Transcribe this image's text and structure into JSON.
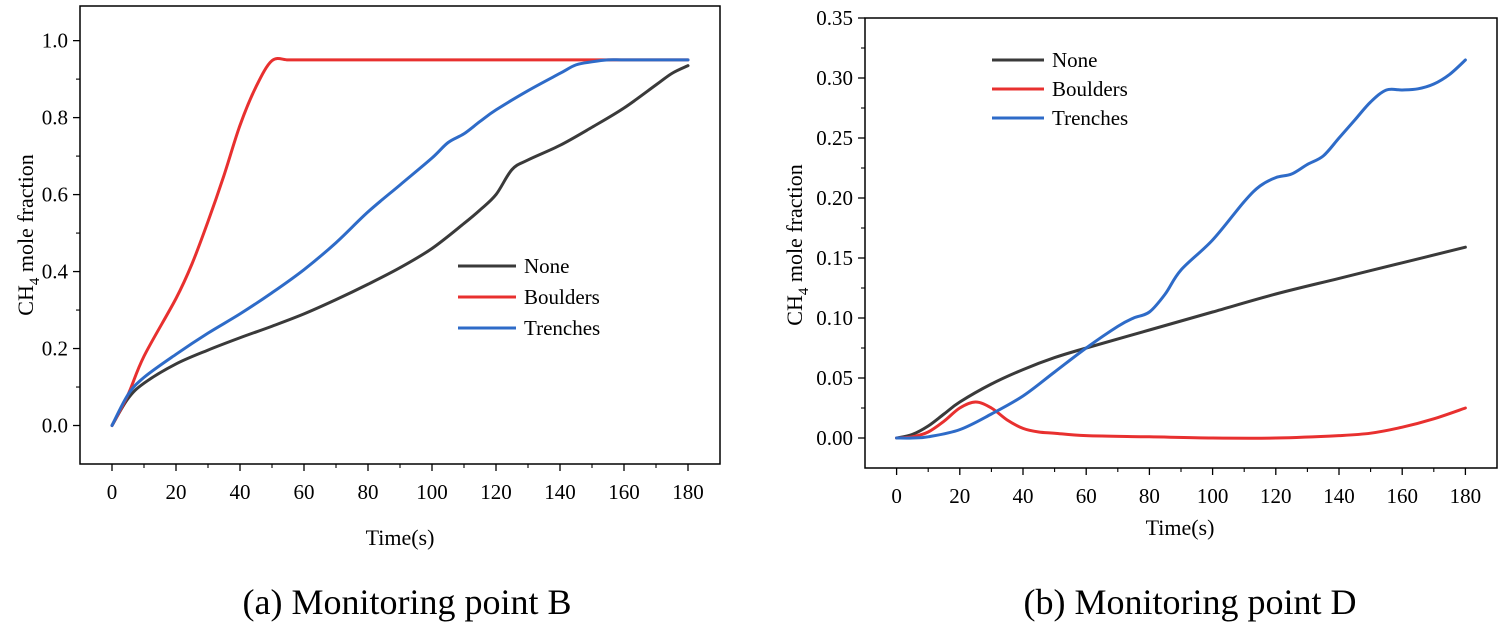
{
  "chart_data": [
    {
      "type": "line",
      "caption": "(a) Monitoring point B",
      "xlabel": "Time(s)",
      "ylabel": {
        "main": "CH",
        "sub": "4",
        "rest": " mole fraction"
      },
      "xlim": [
        -10,
        190
      ],
      "ylim": [
        -0.1,
        1.09
      ],
      "xticks": [
        0,
        20,
        40,
        60,
        80,
        100,
        120,
        140,
        160,
        180
      ],
      "yticks": [
        "0.0",
        "0.2",
        "0.4",
        "0.6",
        "0.8",
        "1.0"
      ],
      "legend_position": "center-right",
      "series": [
        {
          "name": "None",
          "color": "#3a3a3a",
          "x": [
            0,
            5,
            10,
            20,
            30,
            40,
            50,
            60,
            70,
            80,
            90,
            100,
            110,
            115,
            120,
            125,
            130,
            140,
            150,
            160,
            170,
            175,
            180
          ],
          "y": [
            0,
            0.07,
            0.11,
            0.16,
            0.196,
            0.228,
            0.258,
            0.29,
            0.327,
            0.367,
            0.41,
            0.46,
            0.525,
            0.56,
            0.6,
            0.665,
            0.69,
            0.728,
            0.775,
            0.825,
            0.885,
            0.915,
            0.935
          ]
        },
        {
          "name": "Boulders",
          "color": "#e8302f",
          "x": [
            0,
            5,
            10,
            20,
            25,
            30,
            35,
            40,
            45,
            50,
            55,
            60,
            80,
            100,
            120,
            140,
            160,
            180
          ],
          "y": [
            0,
            0.08,
            0.18,
            0.33,
            0.42,
            0.53,
            0.65,
            0.78,
            0.88,
            0.948,
            0.95,
            0.95,
            0.95,
            0.95,
            0.95,
            0.95,
            0.95,
            0.95
          ]
        },
        {
          "name": "Trenches",
          "color": "#2e6bc8",
          "x": [
            0,
            5,
            10,
            20,
            30,
            40,
            50,
            60,
            70,
            80,
            90,
            100,
            105,
            110,
            115,
            120,
            130,
            140,
            145,
            150,
            155,
            160,
            170,
            180
          ],
          "y": [
            0,
            0.08,
            0.125,
            0.185,
            0.24,
            0.29,
            0.345,
            0.405,
            0.475,
            0.555,
            0.625,
            0.695,
            0.735,
            0.758,
            0.79,
            0.82,
            0.87,
            0.915,
            0.937,
            0.945,
            0.95,
            0.95,
            0.95,
            0.95
          ]
        }
      ]
    },
    {
      "type": "line",
      "caption": "(b) Monitoring point D",
      "xlabel": "Time(s)",
      "ylabel": {
        "main": "CH",
        "sub": "4",
        "rest": " mole fraction"
      },
      "xlim": [
        -10,
        190
      ],
      "ylim": [
        -0.025,
        0.35
      ],
      "xticks": [
        0,
        20,
        40,
        60,
        80,
        100,
        120,
        140,
        160,
        180
      ],
      "yticks": [
        "0.00",
        "0.05",
        "0.10",
        "0.15",
        "0.20",
        "0.25",
        "0.30",
        "0.35"
      ],
      "legend_position": "top-left",
      "series": [
        {
          "name": "None",
          "color": "#3a3a3a",
          "x": [
            0,
            5,
            10,
            15,
            20,
            30,
            40,
            50,
            60,
            80,
            100,
            120,
            140,
            160,
            180
          ],
          "y": [
            0,
            0.003,
            0.01,
            0.02,
            0.03,
            0.045,
            0.057,
            0.067,
            0.075,
            0.09,
            0.105,
            0.12,
            0.133,
            0.146,
            0.159
          ]
        },
        {
          "name": "Boulders",
          "color": "#e8302f",
          "x": [
            0,
            5,
            10,
            15,
            20,
            25,
            30,
            35,
            40,
            45,
            50,
            60,
            80,
            100,
            120,
            140,
            150,
            160,
            170,
            180
          ],
          "y": [
            0,
            0.001,
            0.005,
            0.014,
            0.025,
            0.03,
            0.025,
            0.015,
            0.008,
            0.005,
            0.004,
            0.002,
            0.001,
            0,
            0,
            0.002,
            0.004,
            0.009,
            0.016,
            0.025
          ]
        },
        {
          "name": "Trenches",
          "color": "#2e6bc8",
          "x": [
            0,
            5,
            10,
            20,
            30,
            40,
            50,
            60,
            70,
            75,
            80,
            85,
            90,
            100,
            110,
            115,
            120,
            125,
            130,
            135,
            140,
            145,
            150,
            155,
            160,
            165,
            170,
            175,
            180
          ],
          "y": [
            0,
            0,
            0.001,
            0.007,
            0.02,
            0.035,
            0.055,
            0.075,
            0.093,
            0.1,
            0.105,
            0.12,
            0.14,
            0.165,
            0.197,
            0.21,
            0.217,
            0.22,
            0.228,
            0.235,
            0.25,
            0.265,
            0.28,
            0.29,
            0.29,
            0.291,
            0.295,
            0.303,
            0.315
          ]
        }
      ]
    }
  ]
}
